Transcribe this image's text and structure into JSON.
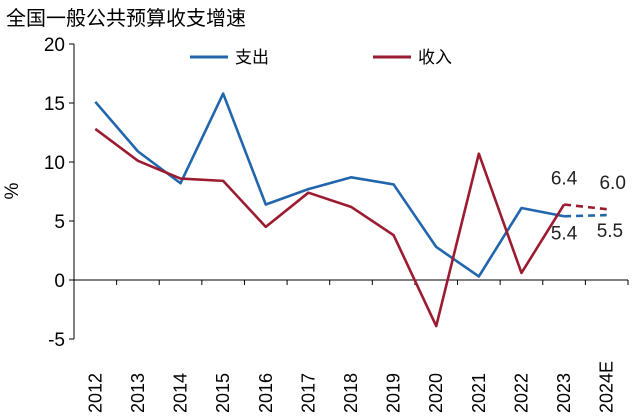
{
  "chart_data": {
    "type": "line",
    "title": "全国一般公共预算收支增速",
    "xlabel": "",
    "ylabel": "%",
    "ylim": [
      -5,
      20
    ],
    "yticks": [
      "-5",
      "0",
      "5",
      "10",
      "15",
      "20"
    ],
    "categories": [
      "2012",
      "2013",
      "2014",
      "2015",
      "2016",
      "2017",
      "2018",
      "2019",
      "2020",
      "2021",
      "2022",
      "2023",
      "2024E"
    ],
    "grid": false,
    "legend_position": "top",
    "series": [
      {
        "name": "支出",
        "color": "#2166ac",
        "values": [
          15.1,
          10.9,
          8.2,
          15.8,
          6.4,
          7.7,
          8.7,
          8.1,
          2.8,
          0.3,
          6.1,
          5.4,
          5.5
        ],
        "dashed_from_index": 11
      },
      {
        "name": "收入",
        "color": "#9b1b30",
        "values": [
          12.8,
          10.1,
          8.6,
          8.4,
          4.5,
          7.4,
          6.2,
          3.8,
          -3.9,
          10.7,
          0.6,
          6.4,
          6.0
        ],
        "dashed_from_index": 11
      }
    ],
    "annotations": [
      {
        "text": "6.4",
        "series": 1,
        "index": 11,
        "placement": "above"
      },
      {
        "text": "5.4",
        "series": 0,
        "index": 11,
        "placement": "below"
      },
      {
        "text": "6.0",
        "series": 1,
        "index": 12,
        "placement": "above"
      },
      {
        "text": "5.5",
        "series": 0,
        "index": 12,
        "placement": "right"
      }
    ]
  }
}
